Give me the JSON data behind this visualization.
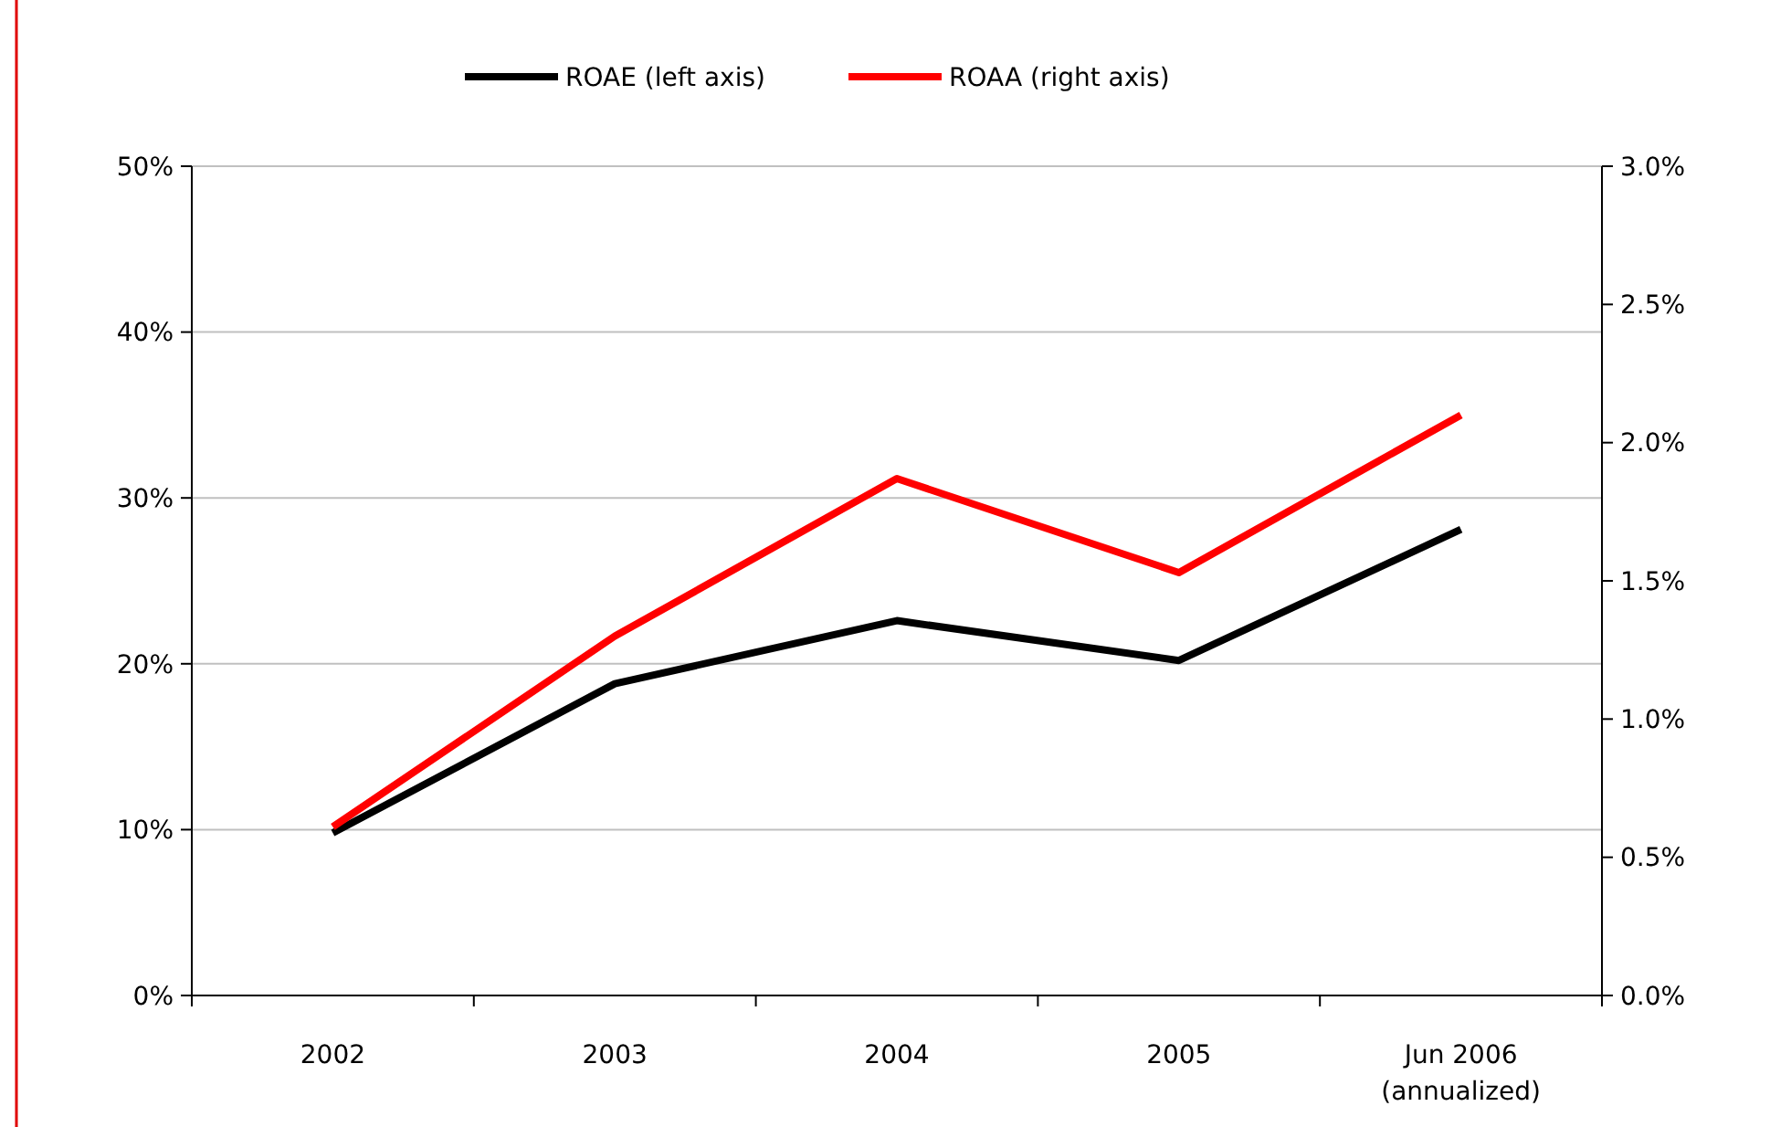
{
  "chart_data": {
    "type": "line",
    "categories": [
      "2002",
      "2003",
      "2004",
      "2005",
      "Jun 2006\n(annualized)"
    ],
    "series": [
      {
        "name": "ROAE (left axis)",
        "color": "#000000",
        "values": [
          9.8,
          18.8,
          22.6,
          20.2,
          28.1
        ]
      },
      {
        "name": "ROAA (right axis)",
        "color": "#ff0000",
        "axis": "y2",
        "values": [
          0.61,
          1.3,
          1.87,
          1.53,
          2.1
        ]
      }
    ],
    "ylim": [
      0,
      50
    ],
    "yticks": [
      {
        "value": 0,
        "label": "0%"
      },
      {
        "value": 10,
        "label": "10%"
      },
      {
        "value": 20,
        "label": "20%"
      },
      {
        "value": 30,
        "label": "30%"
      },
      {
        "value": 40,
        "label": "40%"
      },
      {
        "value": 50,
        "label": "50%"
      }
    ],
    "y2lim": [
      0,
      3
    ],
    "y2ticks": [
      {
        "value": 0,
        "label": "0.0%"
      },
      {
        "value": 0.5,
        "label": "0.5%"
      },
      {
        "value": 1,
        "label": "1.0%"
      },
      {
        "value": 1.5,
        "label": "1.5%"
      },
      {
        "value": 2,
        "label": "2.0%"
      },
      {
        "value": 2.5,
        "label": "2.5%"
      },
      {
        "value": 3,
        "label": "3.0%"
      }
    ],
    "grid": "y",
    "legend": "top",
    "marker": "none",
    "line_style": "solid"
  }
}
